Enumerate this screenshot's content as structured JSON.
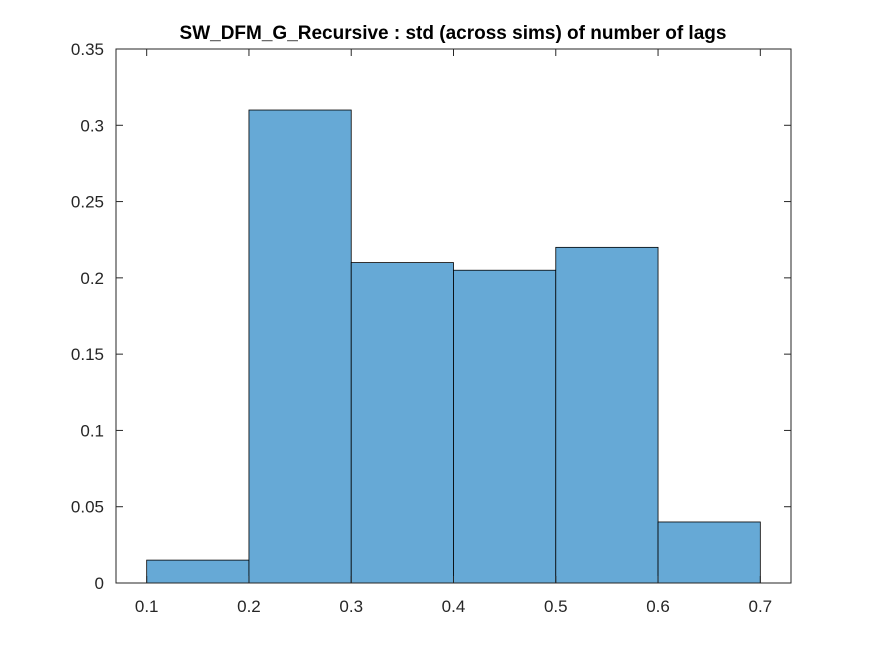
{
  "chart_data": {
    "type": "bar",
    "subtype": "histogram",
    "title": "SW_DFM_G_Recursive : std (across sims) of number of lags",
    "xlabel": "",
    "ylabel": "",
    "bin_edges": [
      0.1,
      0.2,
      0.3,
      0.4,
      0.5,
      0.6,
      0.7
    ],
    "values": [
      0.015,
      0.31,
      0.21,
      0.205,
      0.22,
      0.04
    ],
    "xlim": [
      0.07,
      0.73
    ],
    "ylim": [
      0,
      0.35
    ],
    "xticks": [
      0.1,
      0.2,
      0.3,
      0.4,
      0.5,
      0.6,
      0.7
    ],
    "xtick_labels": [
      "0.1",
      "0.2",
      "0.3",
      "0.4",
      "0.5",
      "0.6",
      "0.7"
    ],
    "yticks": [
      0,
      0.05,
      0.1,
      0.15,
      0.2,
      0.25,
      0.3,
      0.35
    ],
    "ytick_labels": [
      "0",
      "0.05",
      "0.1",
      "0.15",
      "0.2",
      "0.25",
      "0.3",
      "0.35"
    ],
    "grid": false,
    "legend": "none",
    "colors": {
      "bar_fill": "#66a9d6",
      "bar_edge": "#000000",
      "axis": "#262626",
      "background": "#ffffff"
    }
  }
}
